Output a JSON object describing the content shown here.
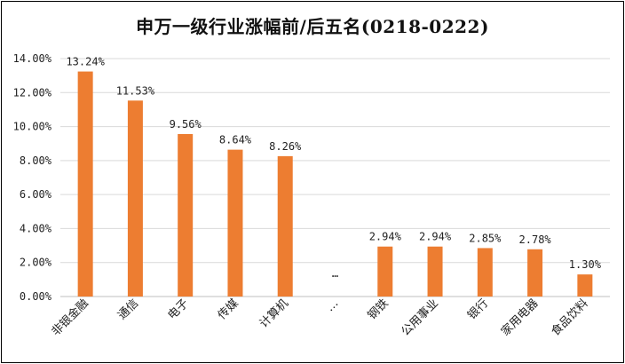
{
  "chart_data": {
    "type": "bar",
    "title": "申万一级行业涨幅前/后五名(0218-0222)",
    "categories": [
      "非银金融",
      "通信",
      "电子",
      "传媒",
      "计算机",
      "…",
      "钢铁",
      "公用事业",
      "银行",
      "家用电器",
      "食品饮料"
    ],
    "values": [
      13.24,
      11.53,
      9.56,
      8.64,
      8.26,
      null,
      2.94,
      2.94,
      2.85,
      2.78,
      1.3
    ],
    "data_labels": [
      "13.24%",
      "11.53%",
      "9.56%",
      "8.64%",
      "8.26%",
      "…",
      "2.94%",
      "2.94%",
      "2.85%",
      "2.78%",
      "1.30%"
    ],
    "yticks": [
      "0.00%",
      "2.00%",
      "4.00%",
      "6.00%",
      "8.00%",
      "10.00%",
      "12.00%",
      "14.00%"
    ],
    "ylim": [
      0,
      14
    ],
    "xlabel": "",
    "ylabel": "",
    "grid": true,
    "bar_color": "#ED7D31",
    "grid_color": "#D9D9D9"
  }
}
